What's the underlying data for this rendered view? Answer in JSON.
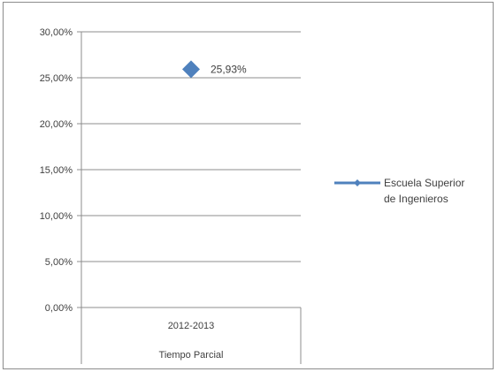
{
  "chart_data": {
    "type": "line",
    "categories": [
      [
        "2012-2013",
        "Tiempo Parcial"
      ]
    ],
    "series": [
      {
        "name": "Escuela Superior de Ingenieros",
        "values": [
          25.93
        ],
        "color": "#4f81bd"
      }
    ],
    "data_labels": [
      "25,93%"
    ],
    "y_ticks": [
      "0,00%",
      "5,00%",
      "10,00%",
      "15,00%",
      "20,00%",
      "25,00%",
      "30,00%"
    ],
    "ylim": [
      0,
      30
    ],
    "grid": true,
    "legend_position": "right",
    "legend_lines": [
      "Escuela Superior",
      "de Ingenieros"
    ],
    "marker": "diamond"
  }
}
